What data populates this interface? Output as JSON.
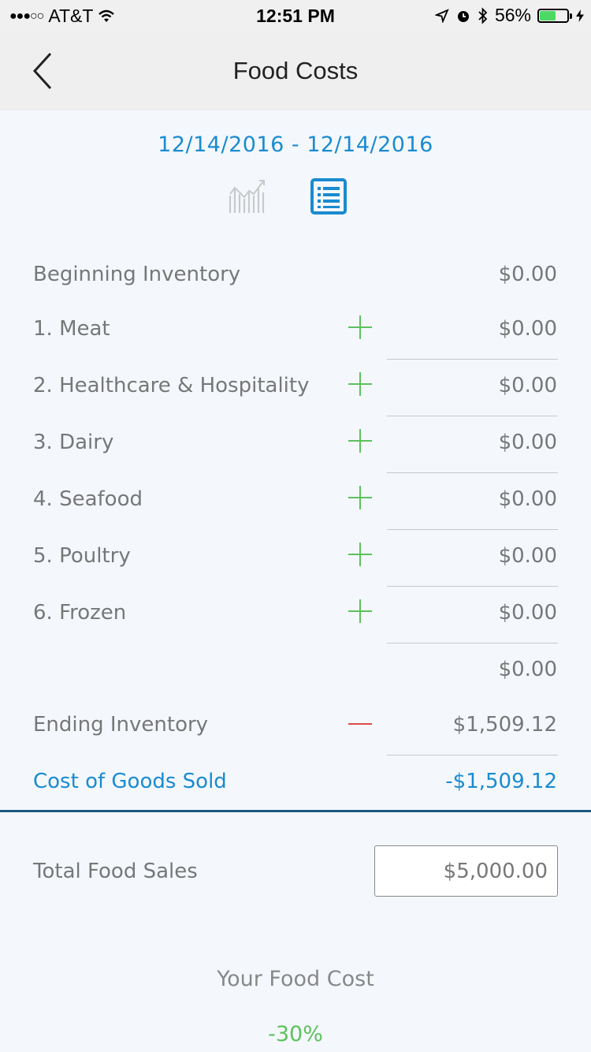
{
  "status_bar": {
    "carrier": "AT&T",
    "signal": "●●●○○",
    "time": "12:51 PM",
    "battery_percent": "56%",
    "battery_level": 0.56
  },
  "nav": {
    "title": "Food Costs"
  },
  "date_range": "12/14/2016 - 12/14/2016",
  "rows": [
    {
      "label": "Beginning Inventory",
      "value": "$0.00"
    },
    {
      "label": "1. Meat",
      "value": "$0.00"
    },
    {
      "label": "2. Healthcare & Hospitality",
      "value": "$0.00"
    },
    {
      "label": "3. Dairy",
      "value": "$0.00"
    },
    {
      "label": "4. Seafood",
      "value": "$0.00"
    },
    {
      "label": "5. Poultry",
      "value": "$0.00"
    },
    {
      "label": "6. Frozen",
      "value": "$0.00"
    },
    {
      "label": "",
      "value": "$0.00"
    },
    {
      "label": "Ending Inventory",
      "value": "$1,509.12"
    },
    {
      "label": "Cost of Goods Sold",
      "value": "-$1,509.12"
    }
  ],
  "sales": {
    "label": "Total Food Sales",
    "value": "$5,000.00"
  },
  "food_cost": {
    "label": "Your Food Cost",
    "value": "-30%"
  },
  "colors": {
    "accent": "#1a8bd0",
    "plus": "#5cc15c",
    "minus": "#e04a4a",
    "divider": "#1c5a7f"
  }
}
